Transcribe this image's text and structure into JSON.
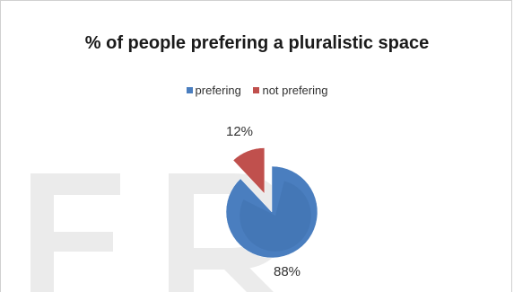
{
  "chart_data": {
    "type": "pie",
    "title": "% of people prefering a pluralistic space",
    "categories": [
      "prefering",
      "not prefering"
    ],
    "values": [
      88,
      12
    ],
    "data_labels": [
      "88%",
      "12%"
    ],
    "colors": [
      "#4a7ebf",
      "#c0504d"
    ],
    "legend_position": "top",
    "exploded_slice": "not prefering"
  },
  "watermark": {
    "text": "ER"
  }
}
